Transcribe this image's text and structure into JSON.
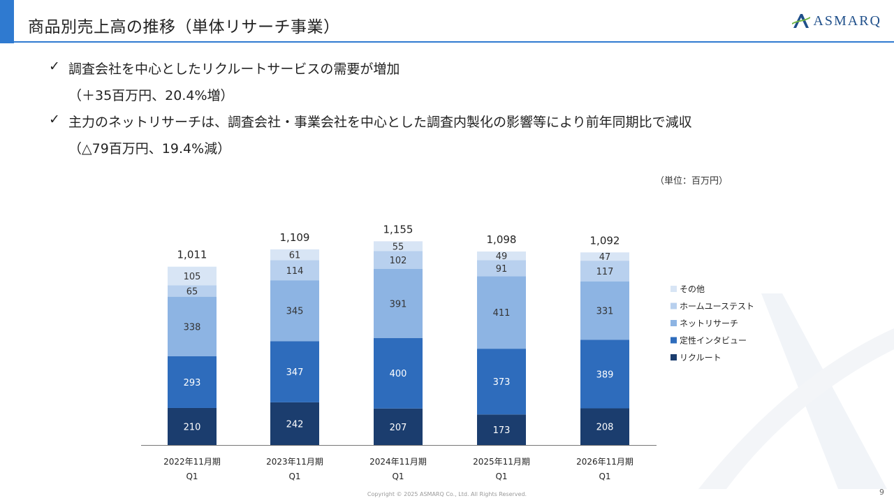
{
  "header": {
    "title": "商品別売上高の推移（単体リサーチ事業）",
    "logo_text": "ASMARQ"
  },
  "bullets": [
    {
      "text": "調査会社を中心としたリクルートサービスの需要が増加",
      "sub": "（＋35百万円、20.4%増）"
    },
    {
      "text": "主力のネットリサーチは、調査会社・事業会社を中心とした調査内製化の影響等により前年同期比で減収",
      "sub": "（△79百万円、19.4%減）"
    }
  ],
  "bullet_icon": "check-icon",
  "unit_label": "（単位：百万円）",
  "footer": {
    "copyright": "Copyright © 2025 ASMARQ Co., Ltd. All Rights Reserved.",
    "page": "9"
  },
  "colors": {
    "accent": "#2f7ad0",
    "series": [
      "#1b3d6e",
      "#2e6cbc",
      "#8db4e3",
      "#b8d0ee",
      "#d8e5f5"
    ]
  },
  "chart_data": {
    "type": "bar",
    "stacked": true,
    "categories": [
      [
        "2022年11月期",
        "Q1"
      ],
      [
        "2023年11月期",
        "Q1"
      ],
      [
        "2024年11月期",
        "Q1"
      ],
      [
        "2025年11月期",
        "Q1"
      ],
      [
        "2026年11月期",
        "Q1"
      ]
    ],
    "series": [
      {
        "name": "リクルート",
        "values": [
          210,
          242,
          207,
          173,
          208
        ]
      },
      {
        "name": "定性インタビュー",
        "values": [
          293,
          347,
          400,
          373,
          389
        ]
      },
      {
        "name": "ネットリサーチ",
        "values": [
          338,
          345,
          391,
          411,
          331
        ]
      },
      {
        "name": "ホームユーステスト",
        "values": [
          65,
          114,
          102,
          91,
          117
        ]
      },
      {
        "name": "その他",
        "values": [
          105,
          61,
          55,
          49,
          47
        ]
      }
    ],
    "totals": [
      "1,011",
      "1,109",
      "1,155",
      "1,098",
      "1,092"
    ],
    "legend_position": "right",
    "grid": false
  }
}
